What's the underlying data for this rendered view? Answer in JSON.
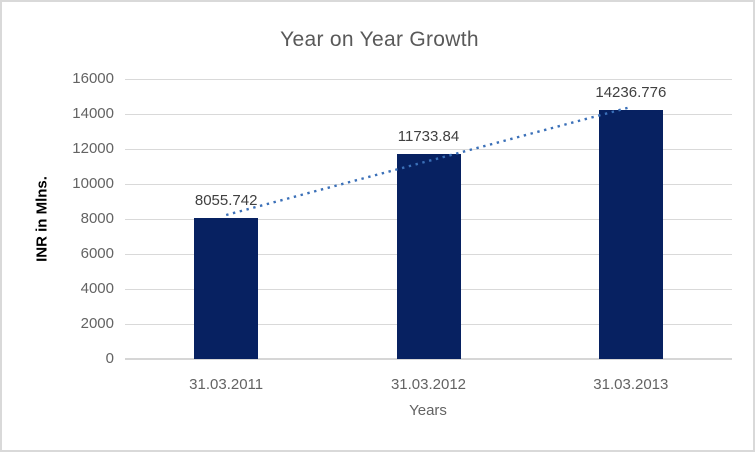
{
  "chart_data": {
    "type": "bar",
    "title": "Year on Year Growth",
    "categories": [
      "31.03.2011",
      "31.03.2012",
      "31.03.2013"
    ],
    "values": [
      8055.742,
      11733.84,
      14236.776
    ],
    "data_labels": [
      "8055.742",
      "11733.84",
      "14236.776"
    ],
    "xlabel": "Years",
    "ylabel": "INR in Mlns.",
    "ylim": [
      0,
      16000
    ],
    "yticks": [
      0,
      2000,
      4000,
      6000,
      8000,
      10000,
      12000,
      14000,
      16000
    ],
    "grid": true,
    "legend": "none",
    "trendline": {
      "style": "dotted-linear",
      "start_value": 8230,
      "end_value": 14400
    },
    "colors": {
      "bar": "#072161",
      "trendline": "#3B70B8",
      "gridline": "#D9D9D9",
      "axis_line": "#D6D6D6",
      "title_text": "#595959",
      "tick_text": "#636363",
      "data_label_text": "#404040",
      "axis_title_text": "#000000",
      "background": "#FFFFFF",
      "border": "#D9D9D9"
    }
  }
}
